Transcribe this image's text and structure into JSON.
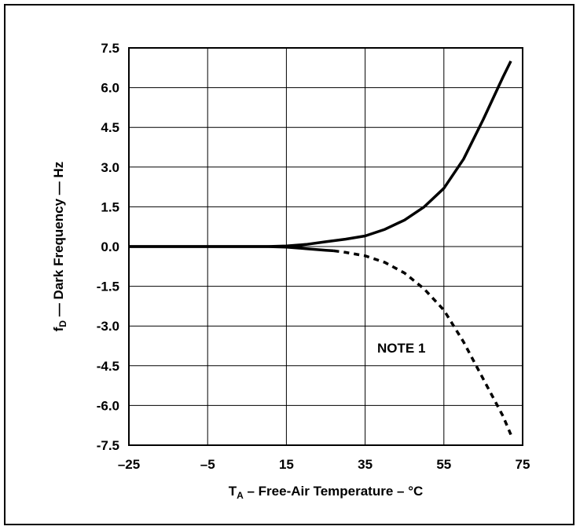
{
  "chart_data": {
    "type": "line",
    "xlabel_main": "T",
    "xlabel_sub": "A",
    "xlabel_rest": " – Free-Air Temperature – °C",
    "ylabel_main": "f",
    "ylabel_sub": "D",
    "ylabel_rest": " — Dark Frequency — Hz",
    "xlim": [
      -25,
      75
    ],
    "ylim": [
      -7.5,
      7.5
    ],
    "x_ticks": [
      -25,
      -5,
      15,
      35,
      55,
      75
    ],
    "x_tick_labels": [
      "–25",
      "–5",
      "15",
      "35",
      "55",
      "75"
    ],
    "y_ticks": [
      7.5,
      6.0,
      4.5,
      3.0,
      1.5,
      0.0,
      -1.5,
      -3.0,
      -4.5,
      -6.0,
      -7.5
    ],
    "y_tick_labels": [
      "7.5",
      "6.0",
      "4.5",
      "3.0",
      "1.5",
      "0.0",
      "-1.5",
      "-3.0",
      "-4.5",
      "-6.0",
      "-7.5"
    ],
    "grid": true,
    "annotation": "NOTE 1",
    "series": [
      {
        "style": "solid",
        "x": [
          -25,
          0,
          10,
          15,
          20,
          25,
          30,
          35,
          40,
          45,
          50,
          55,
          60,
          65,
          70,
          72
        ],
        "y": [
          0,
          0,
          0,
          0.02,
          0.08,
          0.18,
          0.28,
          0.4,
          0.65,
          1.0,
          1.5,
          2.2,
          3.3,
          4.8,
          6.4,
          7.0
        ]
      },
      {
        "style": "solid",
        "x": [
          -25,
          0,
          10,
          15,
          20,
          25,
          27
        ],
        "y": [
          0,
          0,
          0,
          -0.02,
          -0.08,
          -0.14,
          -0.16
        ]
      },
      {
        "style": "dashed",
        "x": [
          27,
          30,
          35,
          40,
          45,
          50,
          55,
          60,
          65,
          70,
          72
        ],
        "y": [
          -0.16,
          -0.22,
          -0.35,
          -0.6,
          -1.0,
          -1.6,
          -2.4,
          -3.6,
          -5.0,
          -6.4,
          -7.1
        ]
      }
    ]
  }
}
